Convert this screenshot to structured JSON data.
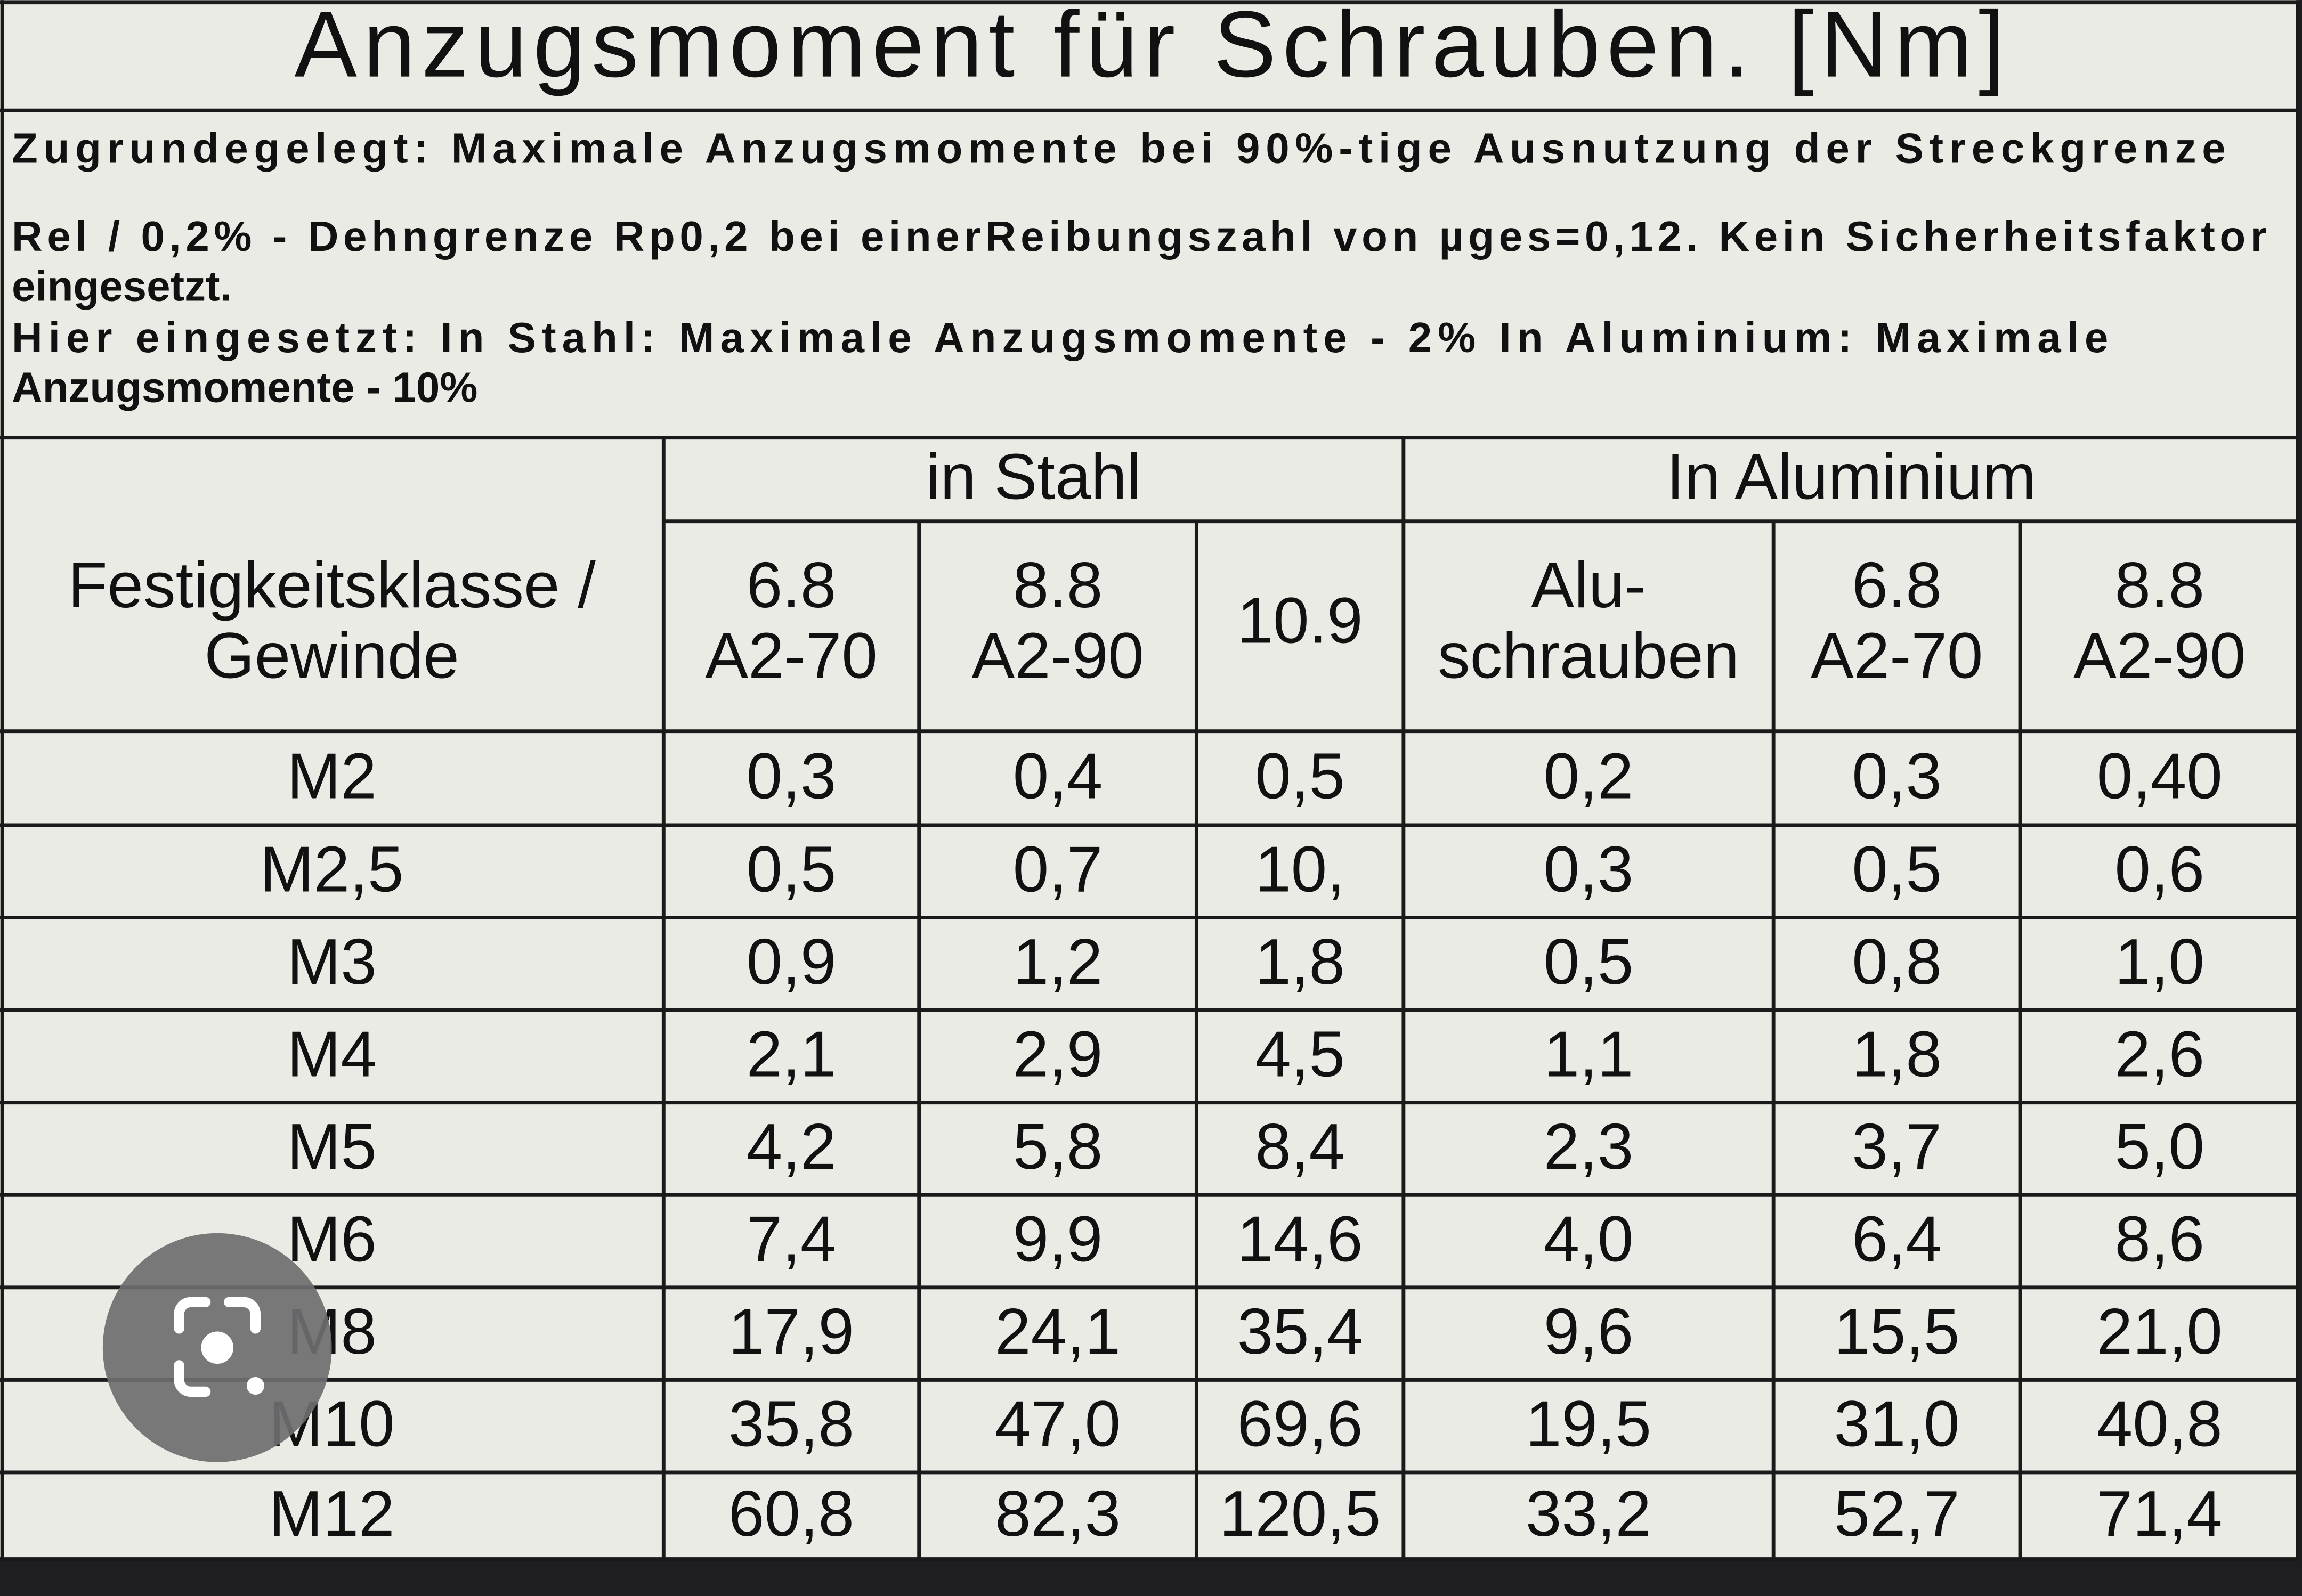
{
  "title": "Anzugsmoment für Schrauben. [Nm]",
  "notes": [
    "Zugrundegelegt:  Maximale Anzugsmomente bei 90%-tige Ausnutzung der Streckgrenze",
    "Rel / 0,2% - Dehngrenze Rp0,2 bei einerReibungszahl von µges=0,12. Kein Sicherheitsfaktor",
    "eingesetzt.",
    "Hier eingesetzt: In Stahl: Maximale Anzugsmomente - 2%    In Aluminium: Maximale",
    "Anzugsmomente - 10%"
  ],
  "table": {
    "groups": [
      "in Stahl",
      "In Aluminium"
    ],
    "columns": [
      [
        "Festigkeitsklasse /",
        "Gewinde"
      ],
      [
        "6.8",
        "A2-70"
      ],
      [
        "8.8",
        "A2-90"
      ],
      [
        "10.9"
      ],
      [
        "Alu-",
        "schrauben"
      ],
      [
        "6.8",
        "A2-70"
      ],
      [
        "8.8",
        "A2-90"
      ]
    ],
    "rows": [
      [
        "M2",
        "0,3",
        "0,4",
        "0,5",
        "0,2",
        "0,3",
        "0,40"
      ],
      [
        "M2,5",
        "0,5",
        "0,7",
        "10,",
        "0,3",
        "0,5",
        "0,6"
      ],
      [
        "M3",
        "0,9",
        "1,2",
        "1,8",
        "0,5",
        "0,8",
        "1,0"
      ],
      [
        "M4",
        "2,1",
        "2,9",
        "4,5",
        "1,1",
        "1,8",
        "2,6"
      ],
      [
        "M5",
        "4,2",
        "5,8",
        "8,4",
        "2,3",
        "3,7",
        "5,0"
      ],
      [
        "M6",
        "7,4",
        "9,9",
        "14,6",
        "4,0",
        "6,4",
        "8,6"
      ],
      [
        "M8",
        "17,9",
        "24,1",
        "35,4",
        "9,6",
        "15,5",
        "21,0"
      ],
      [
        "M10",
        "35,8",
        "47,0",
        "69,6",
        "19,5",
        "31,0",
        "40,8"
      ],
      [
        "M12",
        "60,8",
        "82,3",
        "120,5",
        "33,2",
        "52,7",
        "71,4"
      ]
    ]
  }
}
